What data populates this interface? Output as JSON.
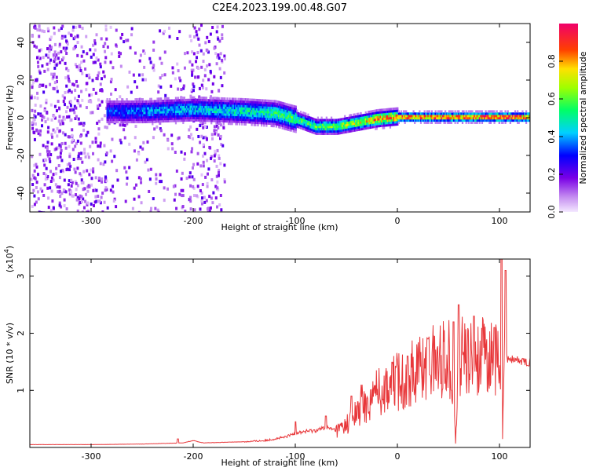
{
  "figure": {
    "title": "C2E4.2023.199.00.48.G07"
  },
  "chart_data": [
    {
      "type": "heatmap",
      "xlabel": "Height of straight line (km)",
      "ylabel": "Frequency (Hz)",
      "xlim": [
        -360,
        130
      ],
      "ylim": [
        -50,
        50
      ],
      "x_ticks": [
        -300,
        -200,
        -100,
        0,
        100
      ],
      "y_ticks": [
        -40,
        -20,
        0,
        20,
        40
      ],
      "colorbar": {
        "label": "Normalized spectral amplitude",
        "range": [
          0.0,
          1.0
        ],
        "ticks": [
          "0.0",
          "0.2",
          "0.4",
          "0.6",
          "0.8"
        ],
        "colormap": "rainbow (violet → blue → cyan → green → yellow → red → magenta)"
      },
      "ridge": {
        "description": "Main signal ridge of frequency vs height",
        "x": [
          -280,
          -250,
          -200,
          -150,
          -120,
          -100,
          -80,
          -60,
          -40,
          -20,
          0,
          50,
          100,
          130
        ],
        "center_frequency": [
          4,
          4,
          5,
          4,
          3,
          0,
          -4,
          -4,
          -2,
          0,
          1,
          1,
          1,
          1
        ],
        "peak_amplitude": [
          0.35,
          0.4,
          0.45,
          0.5,
          0.55,
          0.6,
          0.6,
          0.65,
          0.7,
          0.85,
          0.9,
          0.95,
          1.0,
          0.9
        ]
      },
      "colors": {
        "frame": "#000000"
      }
    },
    {
      "type": "line",
      "xlabel": "Height of straight line (km)",
      "ylabel": "SNR (10 * v/v)",
      "y_multiplier_label": "(x10",
      "y_multiplier_exp": "4",
      "y_multiplier_close": ")",
      "xlim": [
        -360,
        130
      ],
      "ylim": [
        0,
        3.3
      ],
      "x_ticks": [
        -300,
        -200,
        -100,
        0,
        100
      ],
      "y_ticks": [
        1,
        2,
        3
      ],
      "series": [
        {
          "color": "#e8373a",
          "x": [
            -360,
            -300,
            -250,
            -210,
            -200,
            -190,
            -150,
            -130,
            -110,
            -100,
            -90,
            -80,
            -70,
            -60,
            -50,
            -40,
            -30,
            -20,
            -10,
            0,
            10,
            20,
            30,
            40,
            50,
            55,
            57,
            60,
            70,
            80,
            90,
            95,
            100,
            103,
            105,
            108,
            110,
            120,
            130
          ],
          "y": [
            0.05,
            0.05,
            0.06,
            0.08,
            0.12,
            0.08,
            0.1,
            0.12,
            0.18,
            0.25,
            0.28,
            0.3,
            0.35,
            0.3,
            0.4,
            0.6,
            0.75,
            0.95,
            1.1,
            1.15,
            1.25,
            1.4,
            1.5,
            1.55,
            1.6,
            1.3,
            0.05,
            1.6,
            1.55,
            1.6,
            1.55,
            1.6,
            1.4,
            0.15,
            1.9,
            1.55,
            1.55,
            1.52,
            1.5
          ],
          "spikes": [
            {
              "x": -215,
              "y": 0.15
            },
            {
              "x": -100,
              "y": 0.45
            },
            {
              "x": -70,
              "y": 0.55
            },
            {
              "x": -45,
              "y": 0.9
            },
            {
              "x": -35,
              "y": 1.1
            },
            {
              "x": -20,
              "y": 1.35
            },
            {
              "x": -5,
              "y": 1.5
            },
            {
              "x": 10,
              "y": 1.6
            },
            {
              "x": 30,
              "y": 1.9
            },
            {
              "x": 55,
              "y": 2.2
            },
            {
              "x": 60,
              "y": 2.5
            },
            {
              "x": 75,
              "y": 2.3
            },
            {
              "x": 95,
              "y": 2.1
            },
            {
              "x": 102,
              "y": 3.3
            },
            {
              "x": 106,
              "y": 3.1
            }
          ]
        }
      ]
    }
  ]
}
